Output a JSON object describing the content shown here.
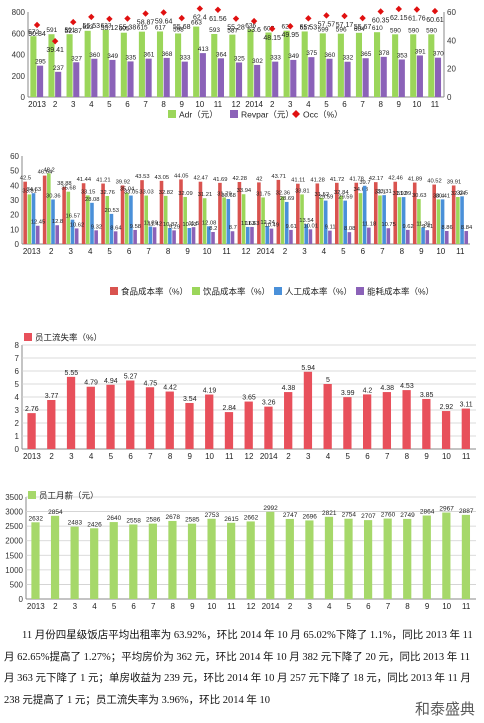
{
  "chart_data": [
    {
      "type": "bar",
      "title": "",
      "categories": [
        "2013",
        "2",
        "3",
        "4",
        "5",
        "6",
        "7",
        "8",
        "9",
        "10",
        "11",
        "12",
        "2014",
        "2",
        "3",
        "4",
        "5",
        "6",
        "7",
        "8",
        "9",
        "10",
        "11"
      ],
      "series": [
        {
          "name": "Adr（元）",
          "color": "#9bd65a",
          "values": [
            572,
            591,
            591,
            623,
            633,
            605,
            615,
            617,
            598,
            663,
            593,
            587,
            636,
            607,
            624,
            617,
            599,
            596,
            604,
            610,
            590,
            590,
            590
          ]
        },
        {
          "name": "Revpar（元）",
          "color": "#8b62b8",
          "values": [
            295,
            237,
            327,
            360,
            349,
            335,
            361,
            368,
            333,
            413,
            364,
            325,
            302,
            333,
            349,
            375,
            360,
            332,
            365,
            378,
            353,
            391,
            370
          ]
        },
        {
          "name": "Occ（%）",
          "color": "#e01010",
          "axis": "right",
          "values": [
            50.84,
            39.41,
            52.87,
            56.53,
            55.12,
            55.38,
            58.87,
            59.64,
            55.68,
            62.4,
            61.56,
            55.28,
            53.6,
            48.15,
            49.95,
            55.53,
            57.57,
            57.17,
            55.67,
            60.35,
            62.15,
            61.76,
            60.61
          ]
        }
      ],
      "ylim": [
        0,
        800
      ],
      "ylim_right": [
        0,
        60
      ],
      "yticks": [
        "0",
        "200",
        "400",
        "600",
        "800"
      ],
      "yticks_right": [
        "0",
        "20",
        "40",
        "60"
      ]
    },
    {
      "type": "bar",
      "title": "",
      "categories": [
        "2013",
        "2",
        "3",
        "4",
        "5",
        "6",
        "7",
        "8",
        "9",
        "10",
        "11",
        "12",
        "2014",
        "2",
        "3",
        "4",
        "5",
        "6",
        "7",
        "8",
        "9",
        "10",
        "11"
      ],
      "series": [
        {
          "name": "食品成本率（%）",
          "color": "#d9534f",
          "values": [
            42.5,
            46.64,
            38.88,
            41.44,
            41.21,
            39.92,
            43.53,
            43.05,
            44.05,
            42.47,
            41.69,
            42.28,
            42.0,
            43.71,
            41.11,
            41.28,
            41.72,
            41.78,
            42.17,
            42.46,
            41.89,
            40.52,
            39.91
          ]
        },
        {
          "name": "饮品成本率（%）",
          "color": "#9bd65a",
          "values": [
            33.81,
            48.2,
            35.68,
            33.15,
            32.76,
            35.04,
            33.03,
            32.82,
            32.09,
            31.21,
            31.79,
            33.94,
            31.75,
            32.36,
            33.81,
            31.52,
            32.84,
            34.68,
            33.1,
            31.92,
            30.63,
            30.4,
            32.04
          ]
        },
        {
          "name": "人工成本率（%）",
          "color": "#4a90d9",
          "values": [
            34.63,
            30.36,
            16.57,
            28.08,
            20.53,
            33.05,
            11.89,
            10.87,
            10.93,
            12.08,
            30.68,
            11.63,
            12.24,
            28.69,
            13.54,
            29.59,
            29.59,
            39.7,
            33.31,
            31.99,
            11.36,
            30.41,
            32.5
          ]
        },
        {
          "name": "能耗成本率（%）",
          "color": "#8b62b8",
          "values": [
            12.45,
            12.8,
            10.62,
            9.32,
            8.64,
            9.58,
            11.42,
            9.29,
            11.5,
            8.2,
            8.7,
            11.63,
            10.49,
            9.61,
            10.01,
            9.11,
            8.08,
            11.18,
            10.75,
            9.62,
            9.41,
            8.86,
            8.84
          ]
        }
      ],
      "ylim": [
        0,
        60
      ],
      "yticks": [
        "0",
        "10",
        "20",
        "30",
        "40",
        "50",
        "60"
      ]
    },
    {
      "type": "bar",
      "title": "",
      "categories": [
        "2013",
        "2",
        "3",
        "4",
        "5",
        "6",
        "7",
        "8",
        "9",
        "10",
        "11",
        "12",
        "2014",
        "2",
        "3",
        "4",
        "5",
        "6",
        "7",
        "8",
        "9",
        "10",
        "11"
      ],
      "series": [
        {
          "name": "员工流失率（%）",
          "color": "#e8505b",
          "values": [
            2.76,
            3.77,
            5.55,
            4.79,
            4.94,
            5.27,
            4.75,
            4.42,
            3.54,
            4.19,
            2.84,
            3.65,
            3.26,
            4.38,
            5.94,
            5.0,
            3.99,
            4.2,
            4.38,
            4.53,
            3.85,
            2.92,
            3.11
          ]
        }
      ],
      "ylim": [
        0,
        8
      ],
      "yticks": [
        "0",
        "1",
        "2",
        "3",
        "4",
        "5",
        "6",
        "7",
        "8"
      ]
    },
    {
      "type": "bar",
      "title": "",
      "categories": [
        "2013",
        "2",
        "3",
        "4",
        "5",
        "6",
        "7",
        "8",
        "9",
        "10",
        "11",
        "12",
        "2014",
        "2",
        "3",
        "4",
        "5",
        "6",
        "7",
        "8",
        "9",
        "10",
        "11"
      ],
      "series": [
        {
          "name": "员工月薪（元）",
          "color": "#a6d86a",
          "values": [
            2632,
            2854,
            2483,
            2426,
            2640,
            2558,
            2586,
            2678,
            2585,
            2753,
            2615,
            2662,
            2992,
            2747,
            2696,
            2821,
            2754,
            2707,
            2760,
            2749,
            2864,
            2967,
            2887
          ]
        }
      ],
      "ylim": [
        0,
        3500
      ],
      "yticks": [
        "0",
        "500",
        "1000",
        "1500",
        "2000",
        "2500",
        "3000",
        "3500"
      ]
    }
  ],
  "summary": "11 月份四星级饭店平均出租率为 63.92%，环比 2014 年 10 月 65.02%下降了 1.1%，同比 2013 年 11 月 62.65%提高了 1.27%；平均房价为 362 元，环比 2014 年 10 月 382 元下降了 20 元，同比 2013 年 11 月 363 元下降了 1 元；单房收益为 239 元，环比 2014 年 10 月 257 元下降了 18 元，同比 2013 年 11 月 238 元提高了 1 元；员工流失率为 3.96%，环比 2014 年 10",
  "watermark": "和泰盛典"
}
